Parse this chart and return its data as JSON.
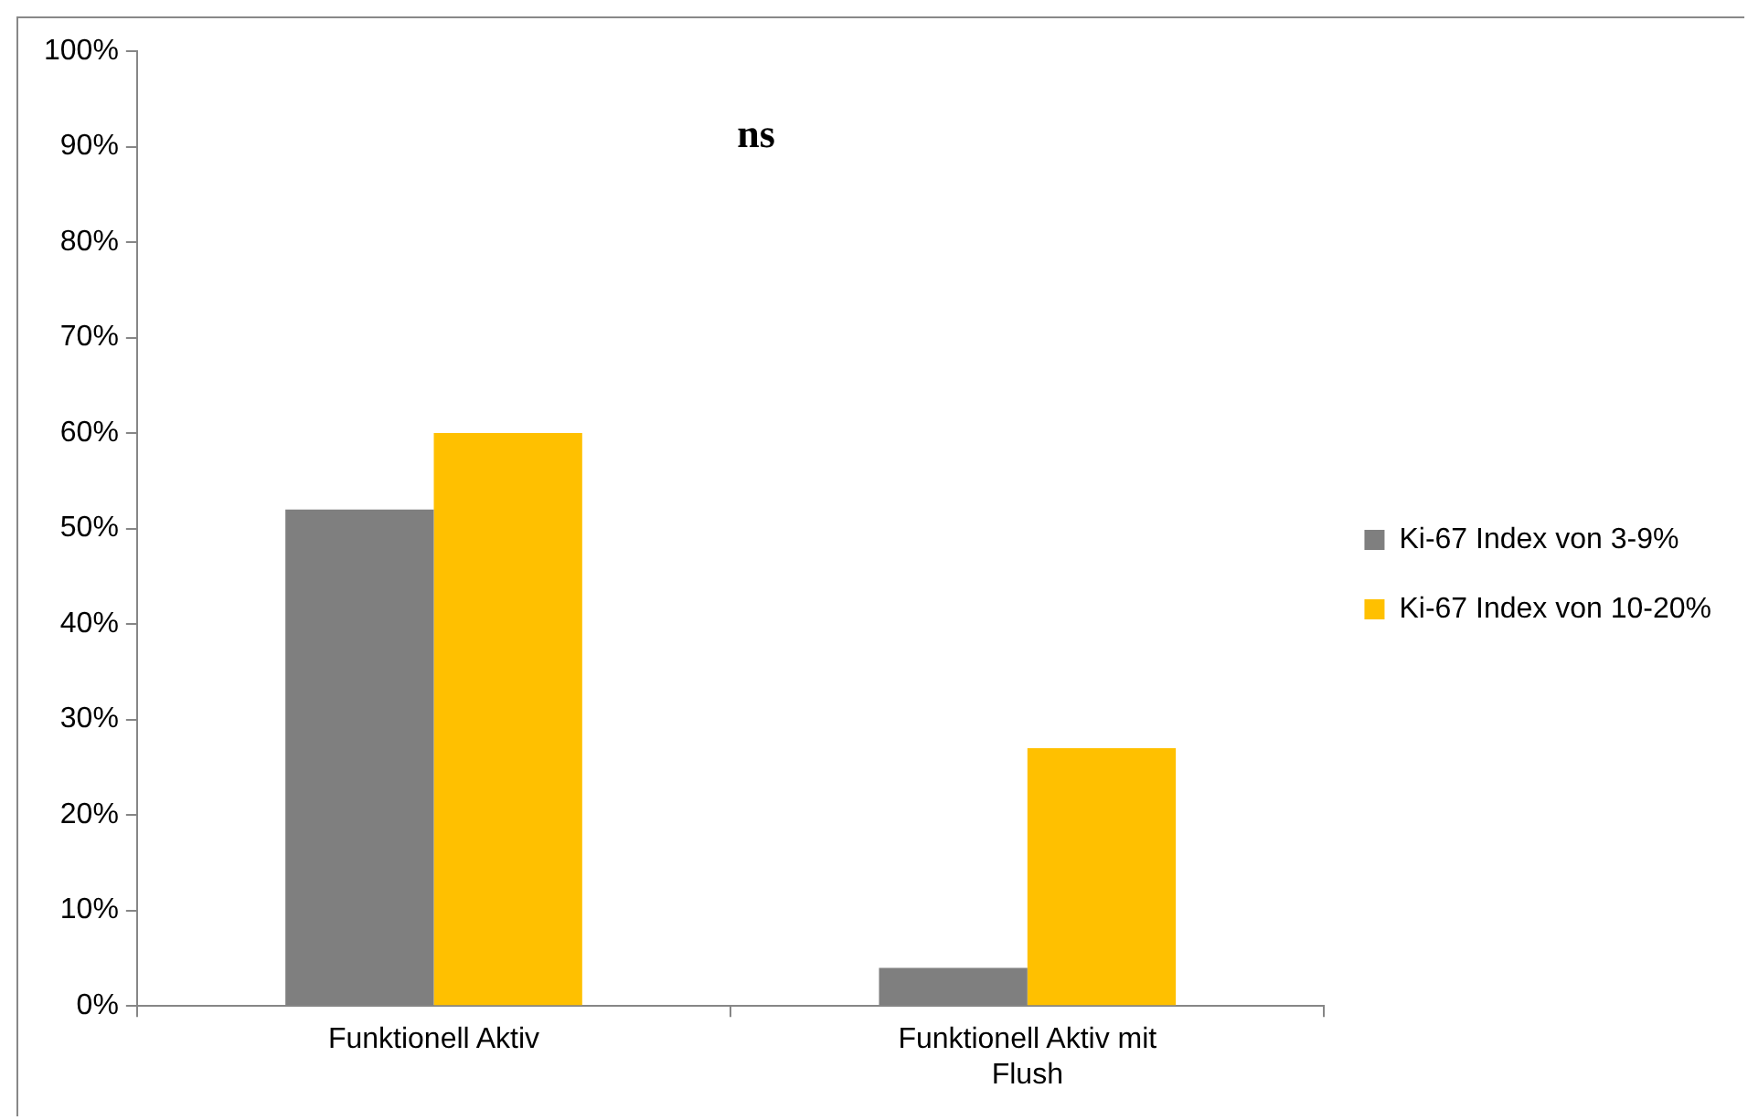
{
  "chart_data": {
    "type": "bar",
    "categories": [
      "Funktionell Aktiv",
      "Funktionell Aktiv mit Flush"
    ],
    "series": [
      {
        "name": "Ki-67 Index von 3-9%",
        "color": "#7f7f7f",
        "values": [
          52,
          4
        ]
      },
      {
        "name": "Ki-67 Index von 10-20%",
        "color": "#ffc000",
        "values": [
          60,
          27
        ]
      }
    ],
    "ylim": [
      0,
      100
    ],
    "yticks": [
      {
        "value": 0,
        "label": "0%"
      },
      {
        "value": 10,
        "label": "10%"
      },
      {
        "value": 20,
        "label": "20%"
      },
      {
        "value": 30,
        "label": "30%"
      },
      {
        "value": 40,
        "label": "40%"
      },
      {
        "value": 50,
        "label": "50%"
      },
      {
        "value": 60,
        "label": "60%"
      },
      {
        "value": 70,
        "label": "70%"
      },
      {
        "value": 80,
        "label": "80%"
      },
      {
        "value": 90,
        "label": "90%"
      },
      {
        "value": 100,
        "label": "100%"
      }
    ],
    "grid": false,
    "legend": "right",
    "annotations": [
      "ns"
    ]
  }
}
